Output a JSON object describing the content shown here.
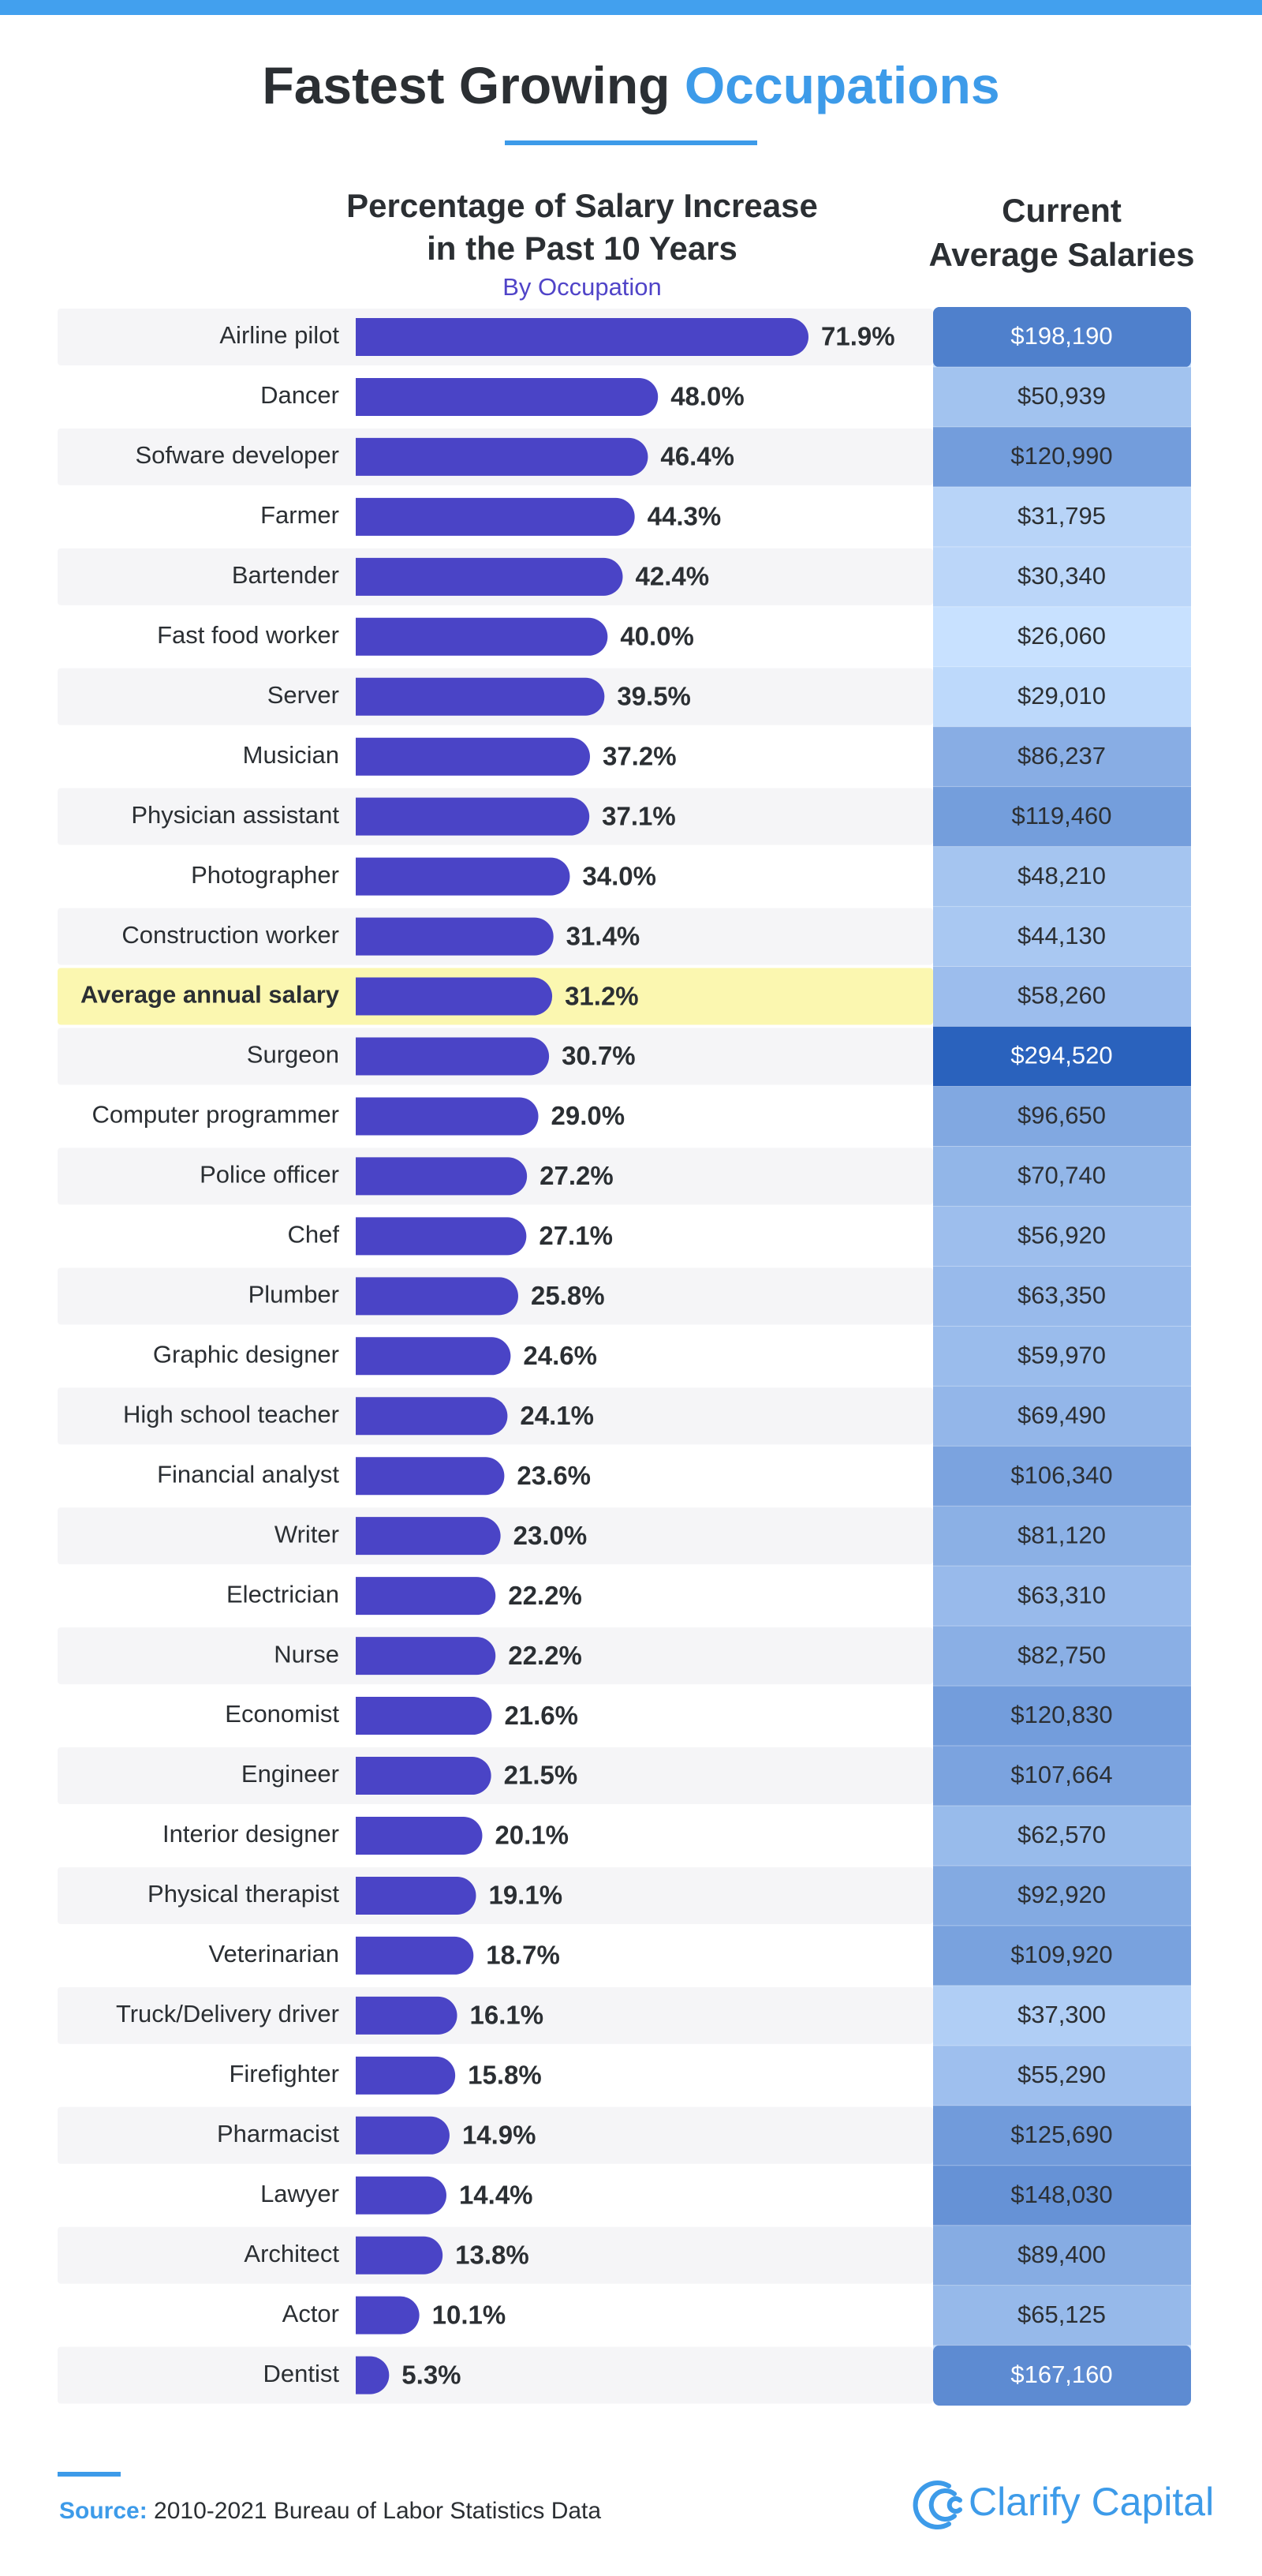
{
  "chart_data": {
    "type": "bar",
    "orientation": "horizontal",
    "title": "Fastest Growing",
    "title_highlight": "Occupations",
    "bar_title": [
      "Percentage of Salary Increase",
      "in the Past 10 Years"
    ],
    "bar_subtitle": "By Occupation",
    "column_title": [
      "Current",
      "Average Salaries"
    ],
    "highlight_index": 11,
    "color": "#4a44c6",
    "categories": [
      "Airline pilot",
      "Dancer",
      "Sofware developer",
      "Farmer",
      "Bartender",
      "Fast food worker",
      "Server",
      "Musician",
      "Physician assistant",
      "Photographer",
      "Construction worker",
      "Average annual salary",
      "Surgeon",
      "Computer programmer",
      "Police officer",
      "Chef",
      "Plumber",
      "Graphic designer",
      "High school teacher",
      "Financial analyst",
      "Writer",
      "Electrician",
      "Nurse",
      "Economist",
      "Engineer",
      "Interior designer",
      "Physical therapist",
      "Veterinarian",
      "Truck/Delivery driver",
      "Firefighter",
      "Pharmacist",
      "Lawyer",
      "Architect",
      "Actor",
      "Dentist"
    ],
    "values": [
      71.9,
      48.0,
      46.4,
      44.3,
      42.4,
      40.0,
      39.5,
      37.2,
      37.1,
      34.0,
      31.4,
      31.2,
      30.7,
      29.0,
      27.2,
      27.1,
      25.8,
      24.6,
      24.1,
      23.6,
      23.0,
      22.2,
      22.2,
      21.6,
      21.5,
      20.1,
      19.1,
      18.7,
      16.1,
      15.8,
      14.9,
      14.4,
      13.8,
      10.1,
      5.3
    ],
    "value_labels": [
      "71.9%",
      "48.0%",
      "46.4%",
      "44.3%",
      "42.4%",
      "40.0%",
      "39.5%",
      "37.2%",
      "37.1%",
      "34.0%",
      "31.4%",
      "31.2%",
      "30.7%",
      "29.0%",
      "27.2%",
      "27.1%",
      "25.8%",
      "24.6%",
      "24.1%",
      "23.6%",
      "23.0%",
      "22.2%",
      "22.2%",
      "21.6%",
      "21.5%",
      "20.1%",
      "19.1%",
      "18.7%",
      "16.1%",
      "15.8%",
      "14.9%",
      "14.4%",
      "13.8%",
      "10.1%",
      "5.3%"
    ],
    "salaries": {
      "color_low": "#c8e1ff",
      "color_high": "#2a62bd",
      "values": [
        198190,
        50939,
        120990,
        31795,
        30340,
        26060,
        29010,
        86237,
        119460,
        48210,
        44130,
        58260,
        294520,
        96650,
        70740,
        56920,
        63350,
        59970,
        69490,
        106340,
        81120,
        63310,
        82750,
        120830,
        107664,
        62570,
        92920,
        109920,
        37300,
        55290,
        125690,
        148030,
        89400,
        65125,
        167160
      ],
      "value_labels": [
        "$198,190",
        "$50,939",
        "$120,990",
        "$31,795",
        "$30,340",
        "$26,060",
        "$29,010",
        "$86,237",
        "$119,460",
        "$48,210",
        "$44,130",
        "$58,260",
        "$294,520",
        "$96,650",
        "$70,740",
        "$56,920",
        "$63,350",
        "$59,970",
        "$69,490",
        "$106,340",
        "$81,120",
        "$63,310",
        "$82,750",
        "$120,830",
        "$107,664",
        "$62,570",
        "$92,920",
        "$109,920",
        "$37,300",
        "$55,290",
        "$125,690",
        "$148,030",
        "$89,400",
        "$65,125",
        "$167,160"
      ]
    },
    "source_label": "Source:",
    "source": "2010-2021 Bureau of Labor Statistics Data",
    "brand": "Clarify Capital"
  }
}
